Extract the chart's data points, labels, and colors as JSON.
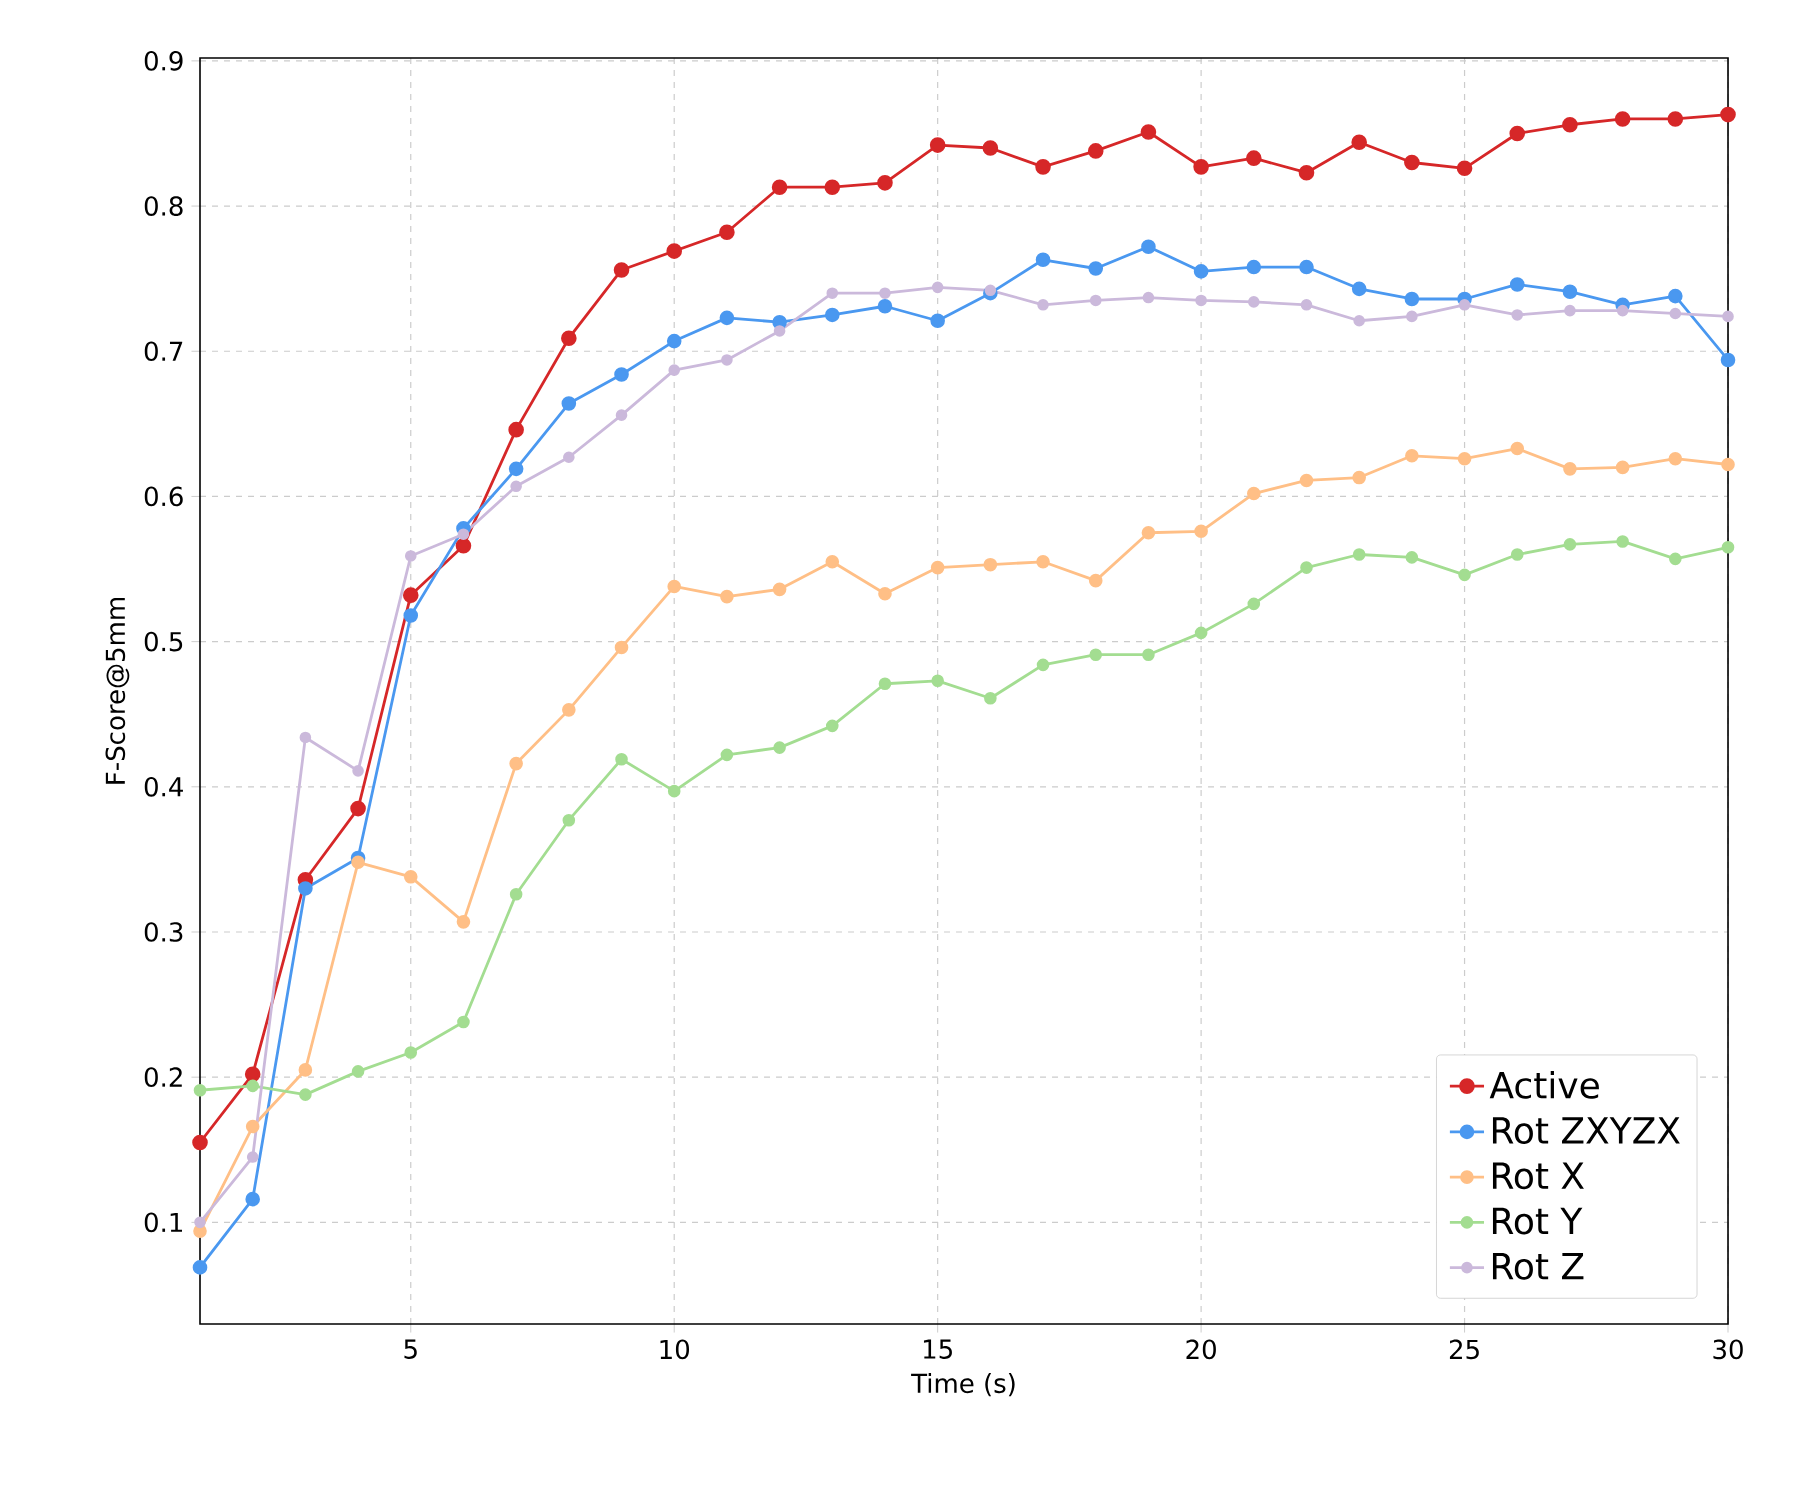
{
  "chart_data": {
    "type": "line",
    "xlabel": "Time (s)",
    "ylabel": "F-Score@5mm",
    "x": [
      1,
      2,
      3,
      4,
      5,
      6,
      7,
      8,
      9,
      10,
      11,
      12,
      13,
      14,
      15,
      16,
      17,
      18,
      19,
      20,
      21,
      22,
      23,
      24,
      25,
      26,
      27,
      28,
      29,
      30
    ],
    "series": [
      {
        "name": "Active",
        "color": "#d62728",
        "values": [
          0.155,
          0.202,
          0.336,
          0.385,
          0.532,
          0.566,
          0.646,
          0.709,
          0.756,
          0.769,
          0.782,
          0.813,
          0.813,
          0.816,
          0.842,
          0.84,
          0.827,
          0.838,
          0.851,
          0.827,
          0.833,
          0.823,
          0.844,
          0.83,
          0.826,
          0.85,
          0.856,
          0.86,
          0.86,
          0.863
        ]
      },
      {
        "name": "Rot ZXYZX",
        "color": "#4a98f0",
        "values": [
          0.069,
          0.116,
          0.33,
          0.351,
          0.518,
          0.578,
          0.619,
          0.664,
          0.684,
          0.707,
          0.723,
          0.72,
          0.725,
          0.731,
          0.721,
          0.74,
          0.763,
          0.757,
          0.772,
          0.755,
          0.758,
          0.758,
          0.743,
          0.736,
          0.736,
          0.746,
          0.741,
          0.732,
          0.738,
          0.694
        ]
      },
      {
        "name": "Rot X",
        "color": "#ffbf86",
        "values": [
          0.094,
          0.166,
          0.205,
          0.348,
          0.338,
          0.307,
          0.416,
          0.453,
          0.496,
          0.538,
          0.531,
          0.536,
          0.555,
          0.533,
          0.551,
          0.553,
          0.555,
          0.542,
          0.575,
          0.576,
          0.602,
          0.611,
          0.613,
          0.628,
          0.626,
          0.633,
          0.619,
          0.62,
          0.626,
          0.622
        ]
      },
      {
        "name": "Rot Y",
        "color": "#a3dd91",
        "values": [
          0.191,
          0.194,
          0.188,
          0.204,
          0.217,
          0.238,
          0.326,
          0.377,
          0.419,
          0.397,
          0.422,
          0.427,
          0.442,
          0.471,
          0.473,
          0.461,
          0.484,
          0.491,
          0.491,
          0.506,
          0.526,
          0.551,
          0.56,
          0.558,
          0.546,
          0.56,
          0.567,
          0.569,
          0.557,
          0.565
        ]
      },
      {
        "name": "Rot Z",
        "color": "#cbb9db",
        "values": [
          0.1,
          0.145,
          0.434,
          0.411,
          0.559,
          0.574,
          0.607,
          0.627,
          0.656,
          0.687,
          0.694,
          0.714,
          0.74,
          0.74,
          0.744,
          0.742,
          0.732,
          0.735,
          0.737,
          0.735,
          0.734,
          0.732,
          0.721,
          0.724,
          0.732,
          0.725,
          0.728,
          0.728,
          0.726,
          0.724
        ]
      }
    ],
    "xlim": [
      1,
      30
    ],
    "ylim": [
      0.03,
      0.902
    ],
    "xticks": [
      5,
      10,
      15,
      20,
      25,
      30
    ],
    "yticks": [
      0.1,
      0.2,
      0.3,
      0.4,
      0.5,
      0.6,
      0.7,
      0.8,
      0.9
    ],
    "grid": true,
    "legend": "bottom right",
    "marker": "circle",
    "line_style": "solid"
  }
}
